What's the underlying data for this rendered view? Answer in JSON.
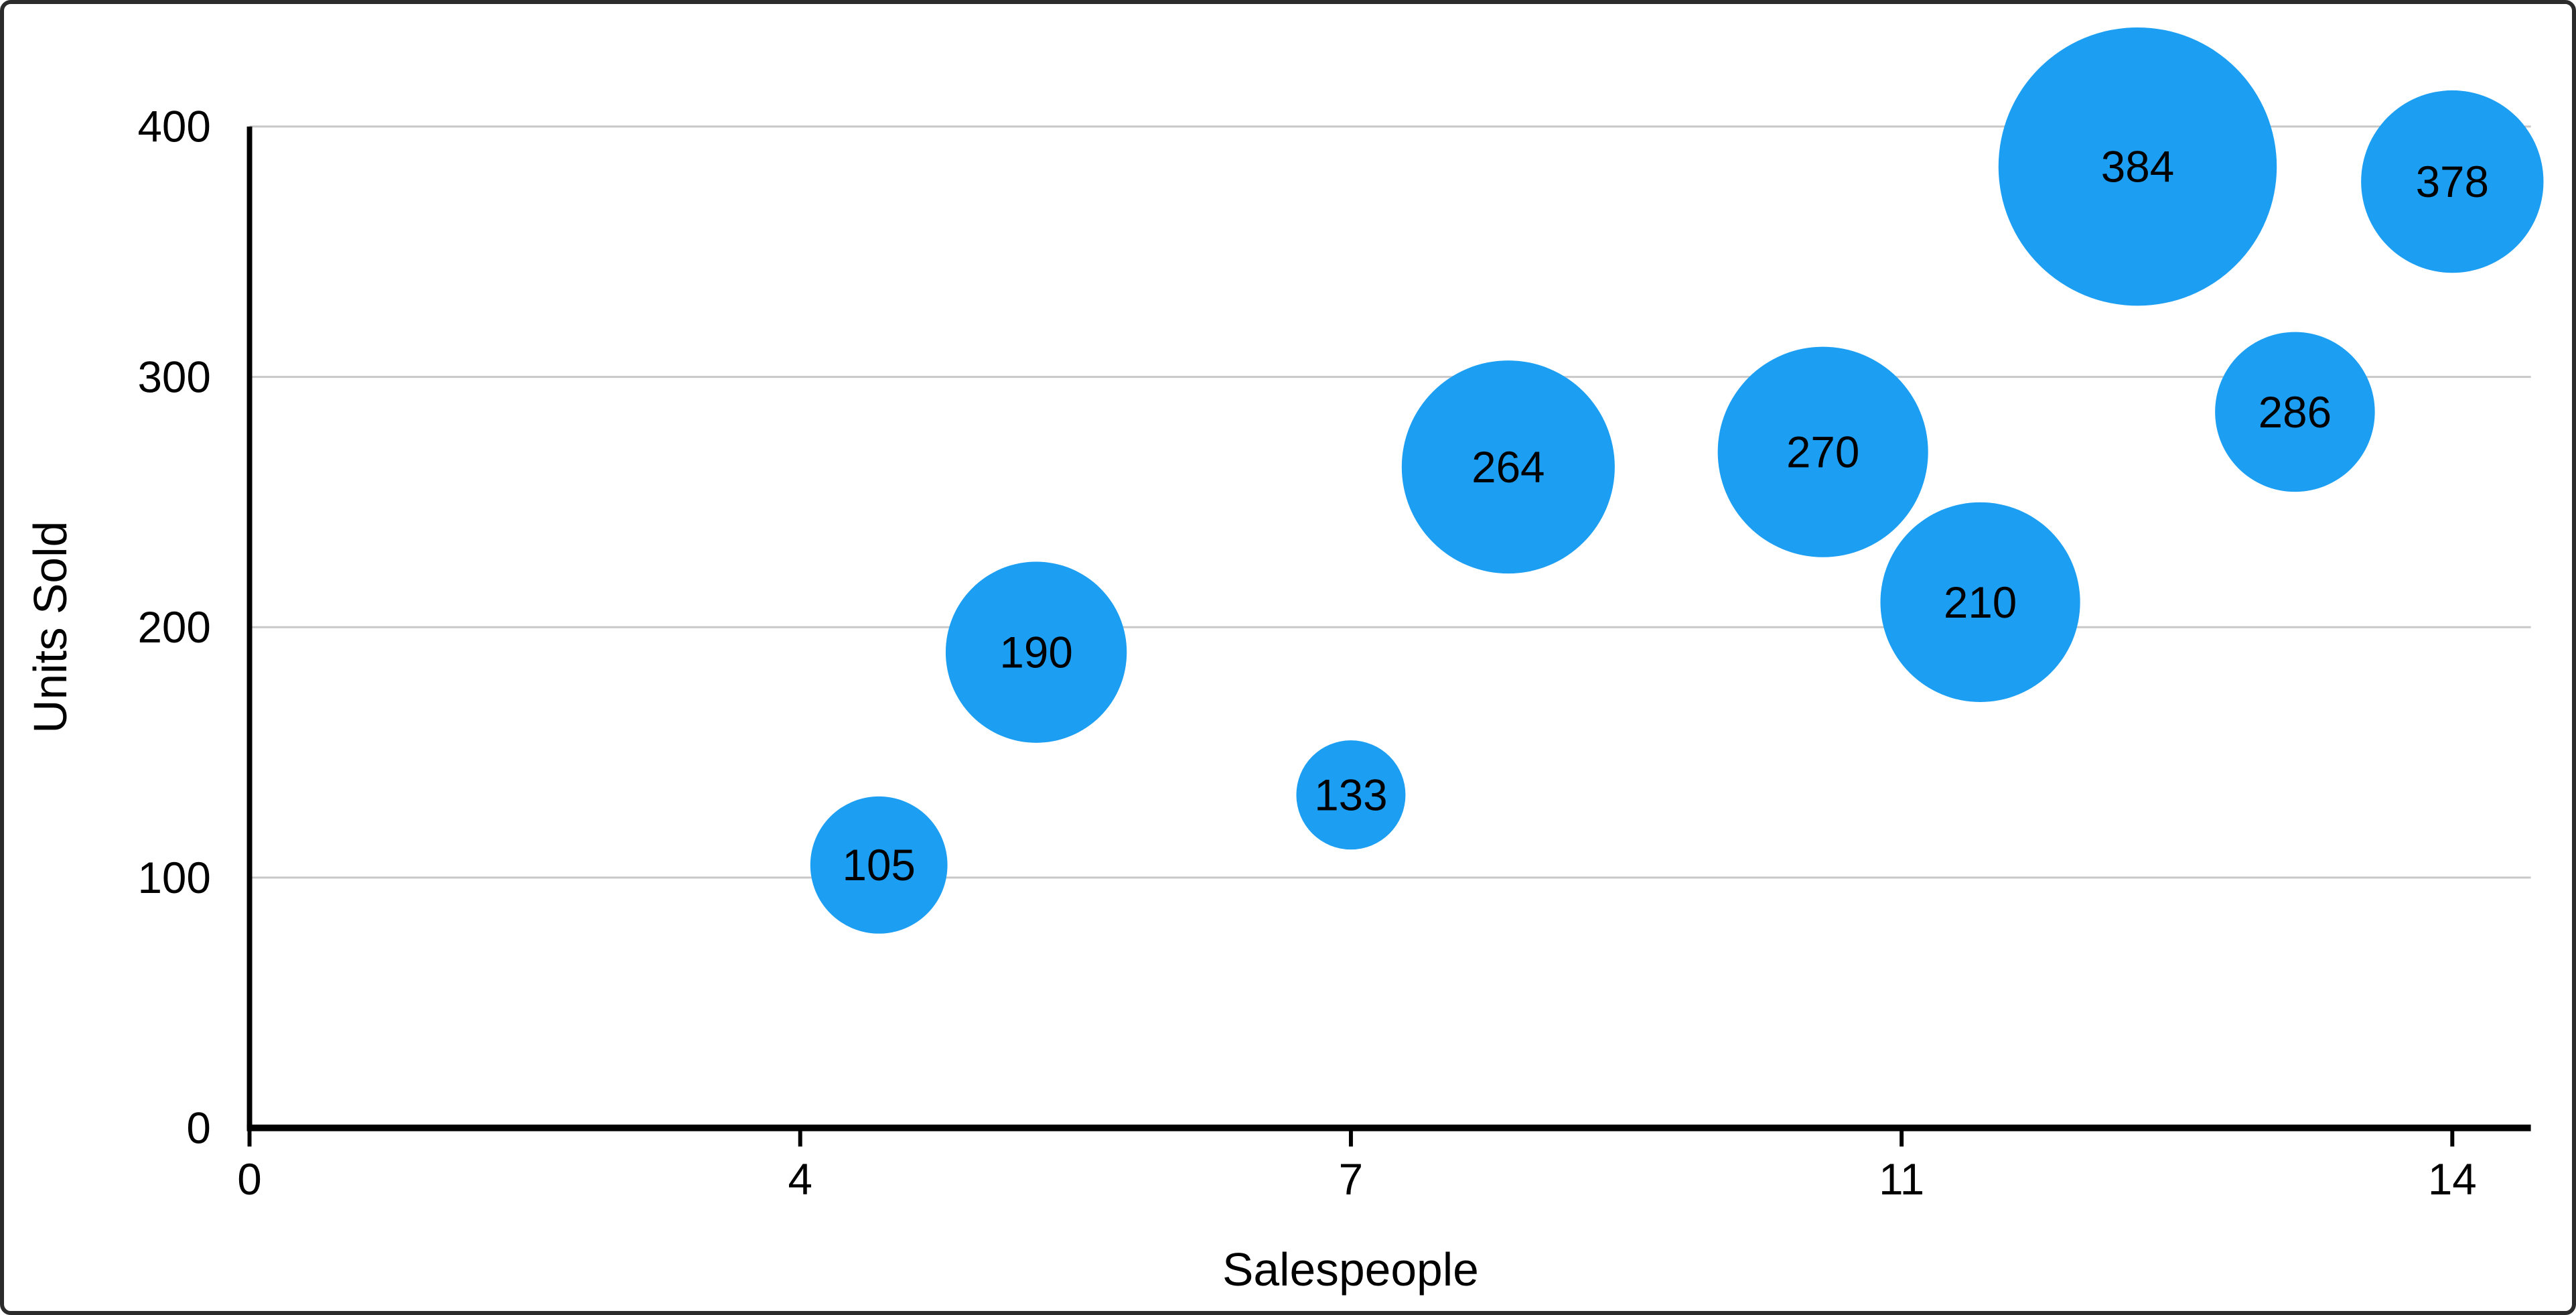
{
  "chart_data": {
    "type": "scatter",
    "subtype": "bubble",
    "title": "",
    "xlabel": "Salespeople",
    "ylabel": "Units Sold",
    "xlim": [
      0,
      14
    ],
    "ylim": [
      0,
      400
    ],
    "grid": true,
    "legend": "none",
    "x_ticks": [
      {
        "pos": 0,
        "label": "0"
      },
      {
        "pos": 3.5,
        "label": "4"
      },
      {
        "pos": 7,
        "label": "7"
      },
      {
        "pos": 10.5,
        "label": "11"
      },
      {
        "pos": 14,
        "label": "14"
      }
    ],
    "y_ticks": [
      {
        "pos": 0,
        "label": "0"
      },
      {
        "pos": 100,
        "label": "100"
      },
      {
        "pos": 200,
        "label": "200"
      },
      {
        "pos": 300,
        "label": "300"
      },
      {
        "pos": 400,
        "label": "400"
      }
    ],
    "points": [
      {
        "x": 4,
        "y": 105,
        "label": "105",
        "radius_px": 103
      },
      {
        "x": 5,
        "y": 190,
        "label": "190",
        "radius_px": 136
      },
      {
        "x": 7,
        "y": 133,
        "label": "133",
        "radius_px": 82
      },
      {
        "x": 8,
        "y": 264,
        "label": "264",
        "radius_px": 160
      },
      {
        "x": 10,
        "y": 270,
        "label": "270",
        "radius_px": 158
      },
      {
        "x": 11,
        "y": 210,
        "label": "210",
        "radius_px": 150
      },
      {
        "x": 12,
        "y": 384,
        "label": "384",
        "radius_px": 209
      },
      {
        "x": 13,
        "y": 286,
        "label": "286",
        "radius_px": 120
      },
      {
        "x": 14,
        "y": 378,
        "label": "378",
        "radius_px": 137
      }
    ],
    "colors": {
      "bubble": "#1C9EF3",
      "grid": "#C8C8C8",
      "axis": "#000000",
      "text": "#000000",
      "background": "#FFFFFF",
      "border": "#2B2B2B"
    }
  }
}
